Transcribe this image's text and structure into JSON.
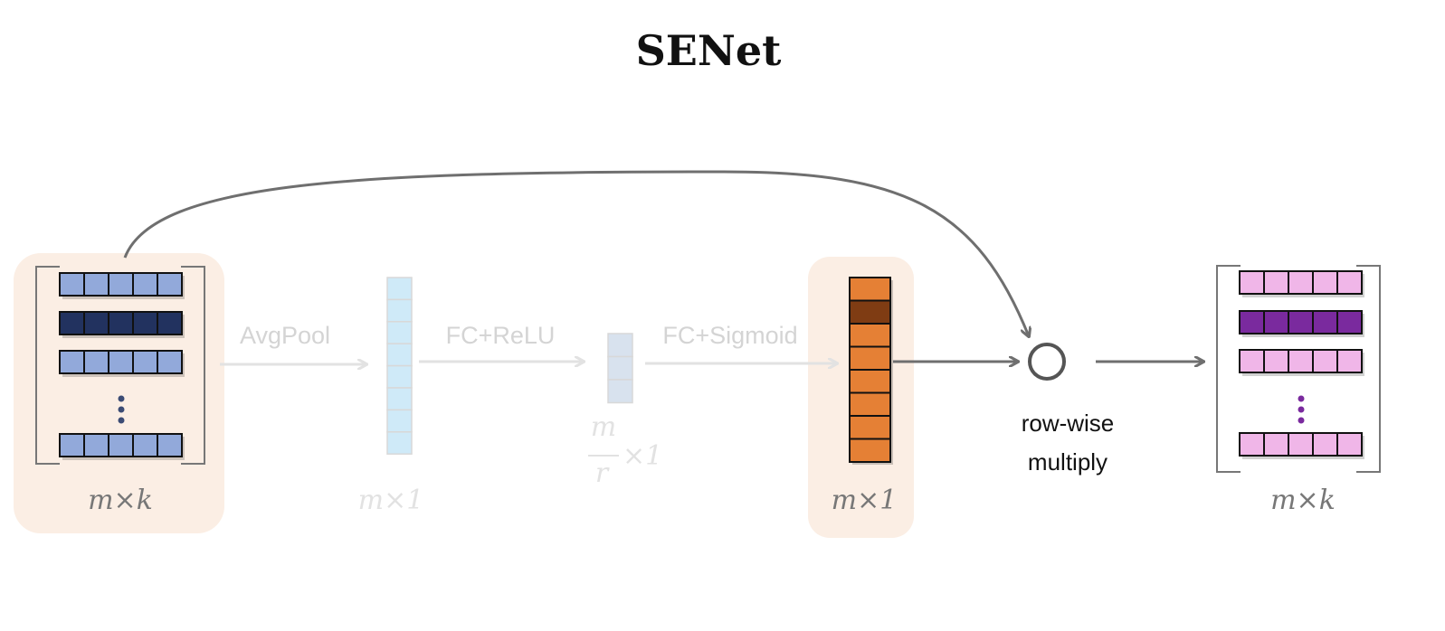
{
  "title": "SENet",
  "input": {
    "dim_label": "m×k",
    "row_color": "#92a9da",
    "highlight_row_color": "#22325f",
    "dots_color": "#3b4b74"
  },
  "step1": {
    "op_label": "AvgPool",
    "dim_label": "m×1",
    "cell_color": "#cfeaf8"
  },
  "step2": {
    "op_label": "FC+ReLU",
    "dim_num": "m",
    "dim_den": "r",
    "dim_suffix": "×1",
    "cell_color": "#d8e2ee"
  },
  "step3": {
    "op_label": "FC+Sigmoid",
    "dim_label": "m×1",
    "cell_color": "#e58035",
    "highlight_cell_color": "#7f3c13"
  },
  "multiply": {
    "label_line1": "row-wise",
    "label_line2": "multiply"
  },
  "output": {
    "dim_label": "m×k",
    "row_color": "#f0b6e8",
    "highlight_row_color": "#7a2a9e",
    "dots_color": "#7a2a9e"
  },
  "colors": {
    "highlight_bg": "#fbeee4",
    "active_arrow": "#6f6f6f",
    "faded": "#e2e2e2"
  }
}
